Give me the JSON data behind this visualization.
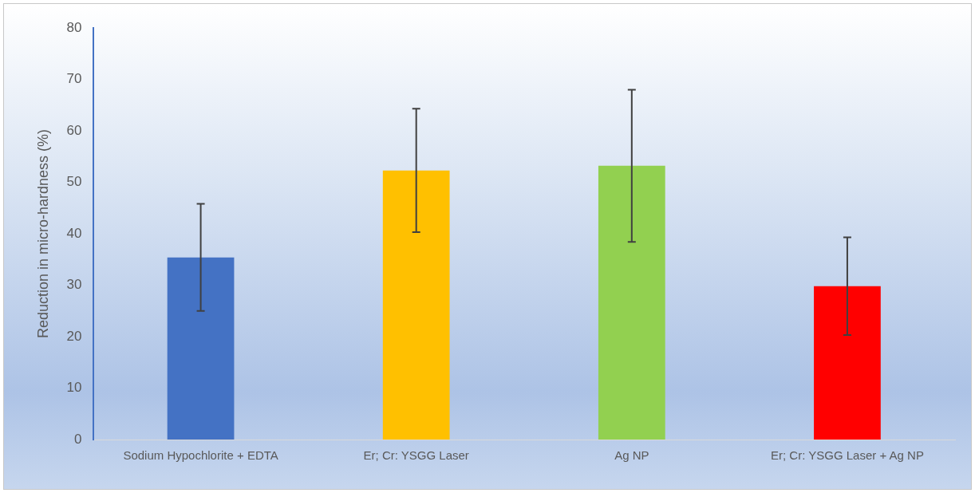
{
  "chart_data": {
    "type": "bar",
    "ylabel": "Reduction in micro-hardness (%)",
    "categories": [
      "Sodium Hypochlorite + EDTA",
      "Er; Cr: YSGG Laser",
      "Ag NP",
      "Er; Cr: YSGG Laser + Ag NP"
    ],
    "values": [
      35.4,
      52.3,
      53.2,
      29.8
    ],
    "colors": [
      "#4472c4",
      "#ffc000",
      "#92d050",
      "#ff0000"
    ],
    "errors": [
      10.4,
      12,
      14.8,
      9.5
    ],
    "ylim": [
      0,
      80
    ],
    "yticks": [
      0,
      10,
      20,
      30,
      40,
      50,
      60,
      70,
      80
    ],
    "grid": false
  }
}
